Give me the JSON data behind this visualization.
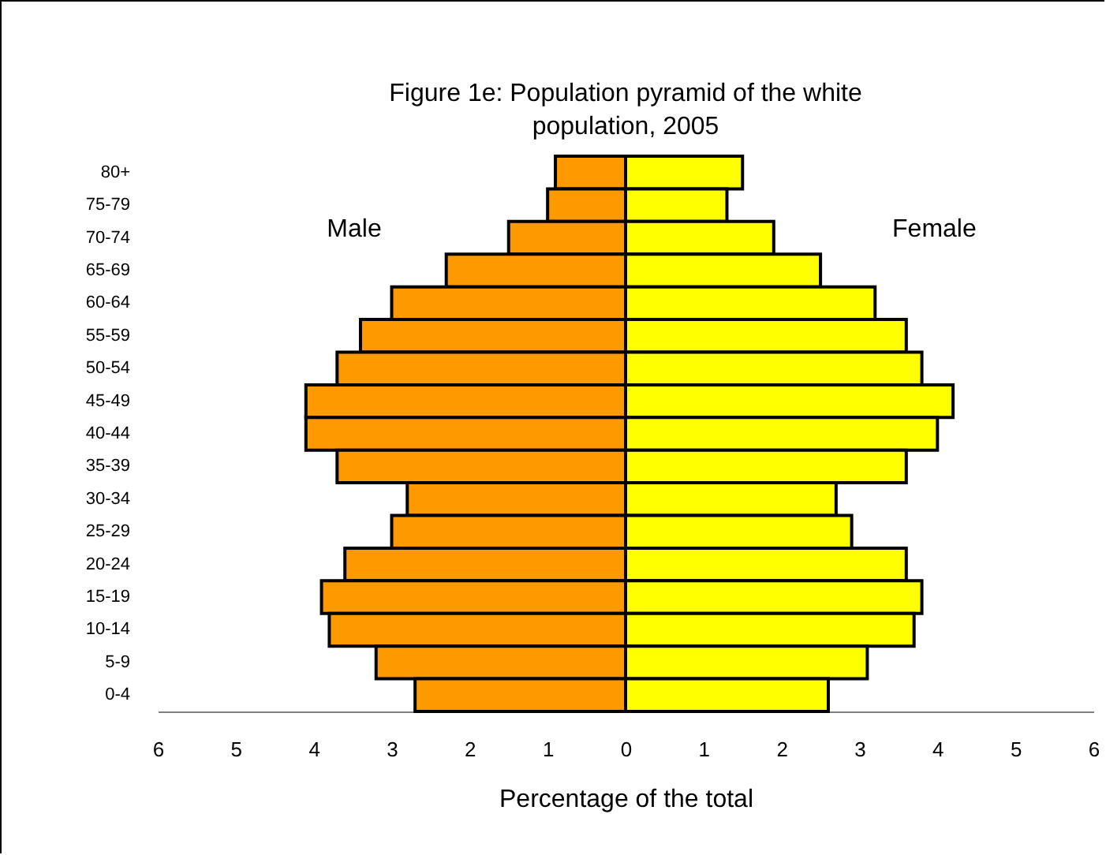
{
  "chart_data": {
    "type": "bar",
    "orientation": "horizontal",
    "stacked": true,
    "title": "Figure 1e:   Population pyramid of the white population, 2005",
    "xlabel": "Percentage of the total",
    "categories": [
      "80+",
      "75-79",
      "70-74",
      "65-69",
      "60-64",
      "55-59",
      "50-54",
      "45-49",
      "40-44",
      "35-39",
      "30-34",
      "25-29",
      "20-24",
      "15-19",
      "10-14",
      "5-9",
      "0-4"
    ],
    "series": [
      {
        "name": "Male",
        "color": "#ff9900",
        "values": [
          -0.9,
          -1.0,
          -1.5,
          -2.3,
          -3.0,
          -3.4,
          -3.7,
          -4.1,
          -4.1,
          -3.7,
          -2.8,
          -3.0,
          -3.6,
          -3.9,
          -3.8,
          -3.2,
          -2.7
        ]
      },
      {
        "name": "Female",
        "color": "#ffff00",
        "values": [
          1.5,
          1.3,
          1.9,
          2.5,
          3.2,
          3.6,
          3.8,
          4.2,
          4.0,
          3.6,
          2.7,
          2.9,
          3.6,
          3.8,
          3.7,
          3.1,
          2.6
        ]
      }
    ],
    "xlim": [
      -6,
      6
    ],
    "xticks": [
      {
        "value": -6,
        "label": "6"
      },
      {
        "value": -5,
        "label": "5"
      },
      {
        "value": -4,
        "label": "4"
      },
      {
        "value": -3,
        "label": "3"
      },
      {
        "value": -2,
        "label": "2"
      },
      {
        "value": -1,
        "label": "1"
      },
      0,
      1,
      2,
      3,
      4,
      5,
      6
    ]
  }
}
